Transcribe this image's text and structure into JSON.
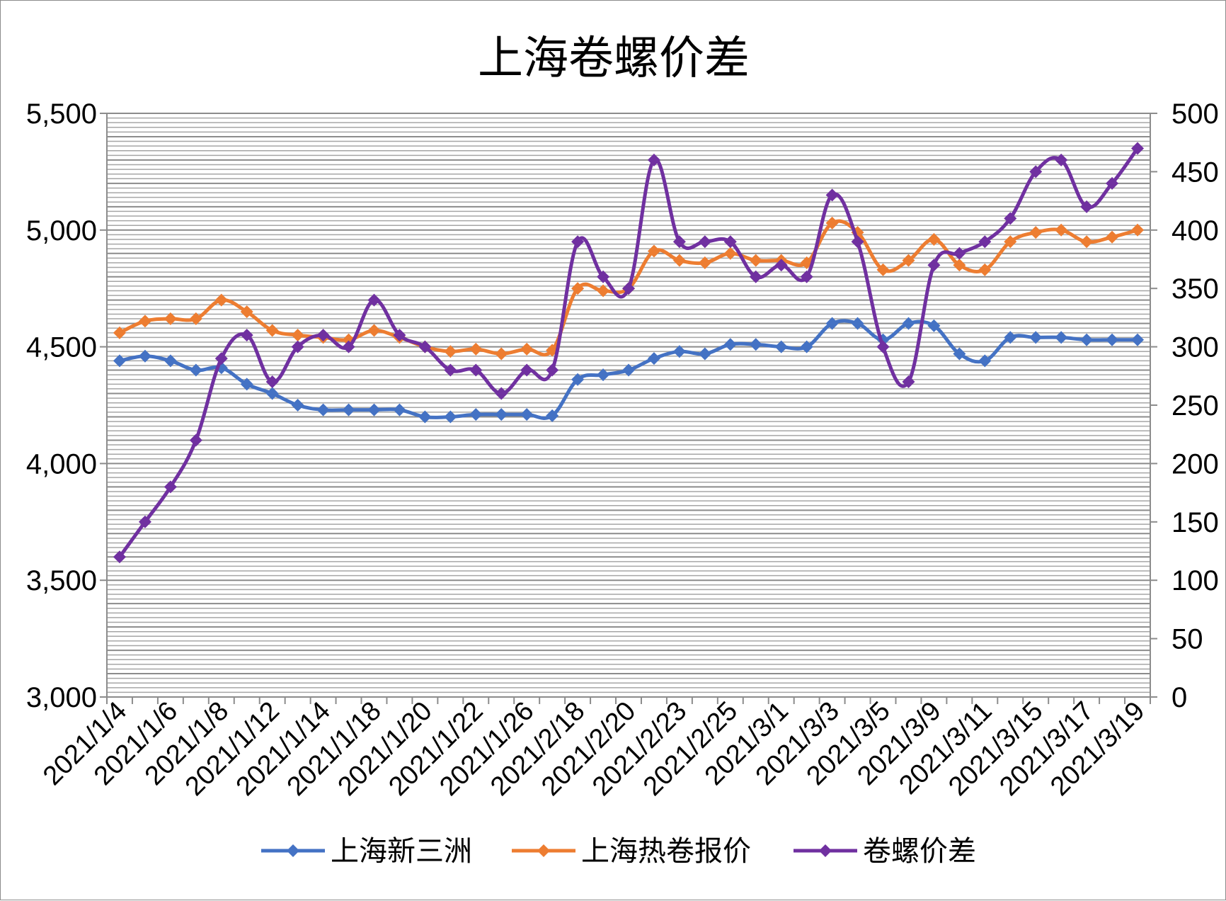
{
  "chart_data": {
    "type": "line",
    "title": "上海卷螺价差",
    "x": [
      "2021/1/4",
      "2021/1/5",
      "2021/1/6",
      "2021/1/7",
      "2021/1/8",
      "2021/1/11",
      "2021/1/12",
      "2021/1/13",
      "2021/1/14",
      "2021/1/15",
      "2021/1/18",
      "2021/1/19",
      "2021/1/20",
      "2021/1/21",
      "2021/1/22",
      "2021/1/25",
      "2021/1/26",
      "2021/1/27",
      "2021/2/18",
      "2021/2/19",
      "2021/2/20",
      "2021/2/22",
      "2021/2/23",
      "2021/2/24",
      "2021/2/25",
      "2021/2/26",
      "2021/3/1",
      "2021/3/2",
      "2021/3/3",
      "2021/3/4",
      "2021/3/5",
      "2021/3/8",
      "2021/3/9",
      "2021/3/10",
      "2021/3/11",
      "2021/3/12",
      "2021/3/15",
      "2021/3/16",
      "2021/3/17",
      "2021/3/18",
      "2021/3/19"
    ],
    "x_tick_labels": [
      "2021/1/4",
      "2021/1/6",
      "2021/1/8",
      "2021/1/12",
      "2021/1/14",
      "2021/1/18",
      "2021/1/20",
      "2021/1/22",
      "2021/1/26",
      "2021/2/18",
      "2021/2/20",
      "2021/2/23",
      "2021/2/25",
      "2021/3/1",
      "2021/3/3",
      "2021/3/5",
      "2021/3/9",
      "2021/3/11",
      "2021/3/15",
      "2021/3/17",
      "2021/3/19"
    ],
    "series": [
      {
        "name": "上海新三洲",
        "axis": "left",
        "color": "#4472C4",
        "values": [
          4440,
          4460,
          4440,
          4400,
          4410,
          4340,
          4300,
          4250,
          4230,
          4230,
          4230,
          4230,
          4200,
          4200,
          4210,
          4210,
          4210,
          4205,
          4360,
          4380,
          4400,
          4450,
          4480,
          4470,
          4510,
          4510,
          4500,
          4500,
          4600,
          4600,
          4530,
          4600,
          4590,
          4470,
          4440,
          4540,
          4540,
          4540,
          4530,
          4530,
          4530
        ]
      },
      {
        "name": "上海热卷报价",
        "axis": "right_dep",
        "color": "#ED7D31",
        "values": [
          4560,
          4610,
          4620,
          4620,
          4700,
          4650,
          4570,
          4550,
          4540,
          4530,
          4570,
          4540,
          4500,
          4480,
          4490,
          4470,
          4490,
          4485,
          4750,
          4740,
          4750,
          4910,
          4870,
          4860,
          4900,
          4870,
          4870,
          4860,
          5030,
          4990,
          4830,
          4870,
          4960,
          4850,
          4830,
          4950,
          4990,
          5000,
          4950,
          4970,
          5000
        ]
      },
      {
        "name": "卷螺价差",
        "axis": "right",
        "color": "#7030A0",
        "values": [
          120,
          150,
          180,
          220,
          290,
          310,
          270,
          300,
          310,
          300,
          340,
          310,
          300,
          280,
          280,
          260,
          280,
          280,
          390,
          360,
          350,
          460,
          390,
          390,
          390,
          360,
          370,
          360,
          430,
          390,
          300,
          270,
          370,
          380,
          390,
          410,
          450,
          460,
          420,
          440,
          470
        ]
      }
    ],
    "y_left": {
      "min": 3000,
      "max": 5500,
      "step": 500,
      "labels": [
        "3,000",
        "3,500",
        "4,000",
        "4,500",
        "5,000",
        "5,500"
      ]
    },
    "y_right": {
      "min": 0,
      "max": 500,
      "step": 50,
      "labels": [
        "0",
        "50",
        "100",
        "150",
        "200",
        "250",
        "300",
        "350",
        "400",
        "450",
        "500"
      ]
    },
    "grid": true,
    "legend_position": "bottom"
  }
}
